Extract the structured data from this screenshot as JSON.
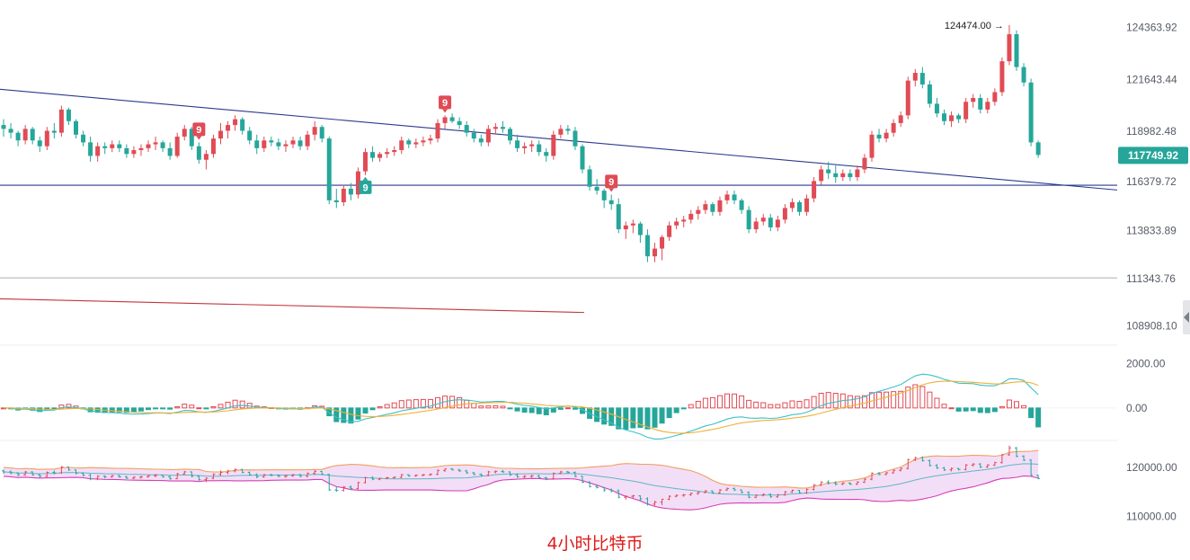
{
  "chart_data": [
    {
      "type": "candlestick",
      "panel": "price",
      "y_ticks": [
        "124363.92",
        "121643.44",
        "118982.48",
        "116379.72",
        "113833.89",
        "111343.76",
        "108908.10"
      ],
      "ylim": [
        107900,
        125400
      ],
      "last_price": "117749.92",
      "high_marker": "124474.00 →",
      "high_value": 124474.0,
      "candles_ohlc": [
        [
          119300,
          119600,
          118700,
          119100
        ],
        [
          119100,
          119400,
          118600,
          118900
        ],
        [
          118900,
          119000,
          118200,
          118500
        ],
        [
          118500,
          119300,
          118300,
          119100
        ],
        [
          119100,
          119200,
          118300,
          118500
        ],
        [
          118500,
          118700,
          117900,
          118200
        ],
        [
          118200,
          119200,
          118000,
          119000
        ],
        [
          119000,
          119400,
          118600,
          118900
        ],
        [
          118900,
          120300,
          118700,
          120100
        ],
        [
          120100,
          120200,
          119300,
          119500
        ],
        [
          119500,
          119600,
          118600,
          118800
        ],
        [
          118800,
          119000,
          118200,
          118400
        ],
        [
          118400,
          118700,
          117400,
          117700
        ],
        [
          117700,
          118400,
          117400,
          118200
        ],
        [
          118200,
          118400,
          117800,
          118100
        ],
        [
          118100,
          118500,
          117900,
          118300
        ],
        [
          118300,
          118500,
          117900,
          118100
        ],
        [
          118100,
          118300,
          117600,
          117800
        ],
        [
          117800,
          118200,
          117600,
          118000
        ],
        [
          118000,
          118300,
          117700,
          118100
        ],
        [
          118100,
          118500,
          117900,
          118300
        ],
        [
          118300,
          118700,
          118000,
          118400
        ],
        [
          118400,
          118500,
          117900,
          118100
        ],
        [
          118100,
          118400,
          117500,
          117700
        ],
        [
          117700,
          118900,
          117600,
          118700
        ],
        [
          118700,
          119300,
          118500,
          119100
        ],
        [
          119100,
          119200,
          118000,
          118200
        ],
        [
          118200,
          118400,
          117300,
          117500
        ],
        [
          117500,
          118000,
          117000,
          117800
        ],
        [
          117800,
          118800,
          117600,
          118600
        ],
        [
          118600,
          119400,
          118300,
          119000
        ],
        [
          119000,
          119500,
          118600,
          119300
        ],
        [
          119300,
          119800,
          119000,
          119600
        ],
        [
          119600,
          119700,
          118800,
          119000
        ],
        [
          119000,
          119200,
          118300,
          118500
        ],
        [
          118500,
          118800,
          117800,
          118100
        ],
        [
          118100,
          118700,
          117900,
          118500
        ],
        [
          118500,
          118700,
          118200,
          118400
        ],
        [
          118400,
          118600,
          118000,
          118200
        ],
        [
          118200,
          118500,
          117900,
          118300
        ],
        [
          118300,
          118700,
          118100,
          118500
        ],
        [
          118500,
          118700,
          118000,
          118200
        ],
        [
          118200,
          119000,
          118000,
          118800
        ],
        [
          118800,
          119500,
          118500,
          119200
        ],
        [
          119200,
          119300,
          118400,
          118600
        ],
        [
          118600,
          118700,
          115200,
          115400
        ],
        [
          115400,
          116000,
          115000,
          115300
        ],
        [
          115300,
          116200,
          115100,
          116000
        ],
        [
          116000,
          116300,
          115400,
          115700
        ],
        [
          115700,
          117100,
          115500,
          116900
        ],
        [
          116900,
          118100,
          116700,
          117900
        ],
        [
          117900,
          118200,
          117400,
          117600
        ],
        [
          117600,
          117900,
          117400,
          117800
        ],
        [
          117800,
          118100,
          117600,
          117900
        ],
        [
          117900,
          118200,
          117700,
          118000
        ],
        [
          118000,
          118700,
          117800,
          118500
        ],
        [
          118500,
          118600,
          118100,
          118300
        ],
        [
          118300,
          118600,
          118100,
          118400
        ],
        [
          118400,
          118700,
          118200,
          118500
        ],
        [
          118500,
          118800,
          118300,
          118600
        ],
        [
          118600,
          119600,
          118400,
          119400
        ],
        [
          119400,
          119800,
          119100,
          119700
        ],
        [
          119700,
          119900,
          119400,
          119500
        ],
        [
          119500,
          119700,
          119100,
          119300
        ],
        [
          119300,
          119500,
          118700,
          118900
        ],
        [
          118900,
          119100,
          118400,
          118600
        ],
        [
          118600,
          118800,
          118200,
          118400
        ],
        [
          118400,
          119300,
          118200,
          119100
        ],
        [
          119100,
          119400,
          118800,
          119200
        ],
        [
          119200,
          119500,
          118900,
          119100
        ],
        [
          119100,
          119200,
          118300,
          118500
        ],
        [
          118500,
          118800,
          117900,
          118100
        ],
        [
          118100,
          118400,
          117800,
          118200
        ],
        [
          118200,
          118500,
          117900,
          118300
        ],
        [
          118300,
          118500,
          117700,
          117900
        ],
        [
          117900,
          118100,
          117400,
          117700
        ],
        [
          117700,
          119000,
          117500,
          118800
        ],
        [
          118800,
          119300,
          118600,
          119100
        ],
        [
          119100,
          119300,
          118800,
          119000
        ],
        [
          119000,
          119200,
          118000,
          118200
        ],
        [
          118200,
          118300,
          116800,
          117000
        ],
        [
          117000,
          117200,
          115900,
          116100
        ],
        [
          116100,
          116500,
          115700,
          115900
        ],
        [
          115900,
          116000,
          115000,
          115400
        ],
        [
          115400,
          115700,
          114900,
          115200
        ],
        [
          115200,
          115500,
          113700,
          113900
        ],
        [
          113900,
          114300,
          113400,
          114100
        ],
        [
          114100,
          114400,
          113700,
          114200
        ],
        [
          114200,
          114300,
          113200,
          113600
        ],
        [
          113600,
          113900,
          112200,
          112500
        ],
        [
          112500,
          113200,
          112200,
          112900
        ],
        [
          112900,
          113600,
          112300,
          113500
        ],
        [
          113500,
          114300,
          113300,
          114100
        ],
        [
          114100,
          114500,
          113900,
          114300
        ],
        [
          114300,
          114600,
          114000,
          114400
        ],
        [
          114400,
          114900,
          114200,
          114700
        ],
        [
          114700,
          115100,
          114400,
          114900
        ],
        [
          114900,
          115400,
          114700,
          115200
        ],
        [
          115200,
          115300,
          114600,
          114800
        ],
        [
          114800,
          115600,
          114600,
          115400
        ],
        [
          115400,
          115900,
          115200,
          115700
        ],
        [
          115700,
          115900,
          115200,
          115400
        ],
        [
          115400,
          115500,
          114700,
          114900
        ],
        [
          114900,
          115100,
          113700,
          113900
        ],
        [
          113900,
          114500,
          113700,
          114300
        ],
        [
          114300,
          114700,
          114100,
          114500
        ],
        [
          114500,
          114700,
          113800,
          114000
        ],
        [
          114000,
          114600,
          113800,
          114400
        ],
        [
          114400,
          115200,
          114200,
          115000
        ],
        [
          115000,
          115500,
          114800,
          115300
        ],
        [
          115300,
          115400,
          114600,
          114800
        ],
        [
          114800,
          115700,
          114600,
          115500
        ],
        [
          115500,
          116600,
          115300,
          116400
        ],
        [
          116400,
          117200,
          116200,
          117000
        ],
        [
          117000,
          117400,
          116500,
          116800
        ],
        [
          116800,
          117200,
          116300,
          116600
        ],
        [
          116600,
          117000,
          116400,
          116800
        ],
        [
          116800,
          117000,
          116400,
          116600
        ],
        [
          116600,
          117200,
          116400,
          117000
        ],
        [
          117000,
          117800,
          116800,
          117600
        ],
        [
          117600,
          119000,
          117400,
          118800
        ],
        [
          118800,
          119100,
          118400,
          118600
        ],
        [
          118600,
          119100,
          118400,
          118900
        ],
        [
          118900,
          119600,
          118700,
          119400
        ],
        [
          119400,
          120000,
          119200,
          119800
        ],
        [
          119800,
          121800,
          119600,
          121600
        ],
        [
          121600,
          122200,
          121300,
          122000
        ],
        [
          122000,
          122300,
          121200,
          121400
        ],
        [
          121400,
          121600,
          120200,
          120400
        ],
        [
          120400,
          120700,
          119700,
          119900
        ],
        [
          119900,
          120100,
          119300,
          119500
        ],
        [
          119500,
          120000,
          119200,
          119800
        ],
        [
          119800,
          119900,
          119400,
          119600
        ],
        [
          119600,
          120700,
          119400,
          120500
        ],
        [
          120500,
          120900,
          120200,
          120700
        ],
        [
          120700,
          120900,
          119900,
          120100
        ],
        [
          120100,
          120700,
          119900,
          120500
        ],
        [
          120500,
          121200,
          120300,
          121000
        ],
        [
          121000,
          122800,
          120800,
          122600
        ],
        [
          122600,
          124474,
          122400,
          124000
        ],
        [
          124000,
          124200,
          122100,
          122300
        ],
        [
          122300,
          122500,
          121300,
          121500
        ],
        [
          121500,
          121700,
          118200,
          118400
        ],
        [
          118400,
          118500,
          117600,
          117749.92
        ]
      ],
      "td_tags": [
        {
          "i": 27,
          "label": "9",
          "pos": "above",
          "color": "#e04b55"
        },
        {
          "i": 50,
          "label": "9",
          "pos": "below",
          "color": "#26a69a"
        },
        {
          "i": 61,
          "label": "9",
          "pos": "above",
          "color": "#e04b55"
        },
        {
          "i": 84,
          "label": "9",
          "pos": "above",
          "color": "#e04b55"
        }
      ],
      "trendlines": [
        {
          "name": "descending",
          "from": [
            0,
            121150
          ],
          "to": [
            151,
            116050
          ],
          "color": "#2a3b8f"
        },
        {
          "name": "support",
          "from": [
            0,
            116180
          ],
          "to": [
            151,
            116180
          ],
          "color": "#2a3b8f"
        },
        {
          "name": "lower",
          "from": [
            0,
            111380
          ],
          "to": [
            151,
            111380
          ],
          "color": "#b5b8bd"
        },
        {
          "name": "red",
          "from": [
            0,
            110300
          ],
          "to": [
            80,
            109600
          ],
          "color": "#c0363d"
        }
      ]
    },
    {
      "type": "macd",
      "panel": "indicator",
      "y_ticks": [
        "2000.00",
        "0.00"
      ],
      "ylim": [
        -1300,
        2500
      ],
      "colors": {
        "positive": "#e04b55",
        "negative": "#26a69a",
        "fast": "#3fc0c6",
        "slow": "#f0b037"
      }
    },
    {
      "type": "bollinger",
      "panel": "lower",
      "y_ticks": [
        "120000.00",
        "110000.00"
      ],
      "ylim": [
        107500,
        124800
      ],
      "colors": {
        "band": "#f0a060",
        "lower": "#d63fb8",
        "fill": "#f3def7",
        "mid": "#5fb8c2"
      }
    }
  ],
  "caption": "4小时比特币",
  "colors": {
    "up": "#e04b55",
    "down": "#26a69a",
    "last_price_bg": "#26a69a"
  }
}
